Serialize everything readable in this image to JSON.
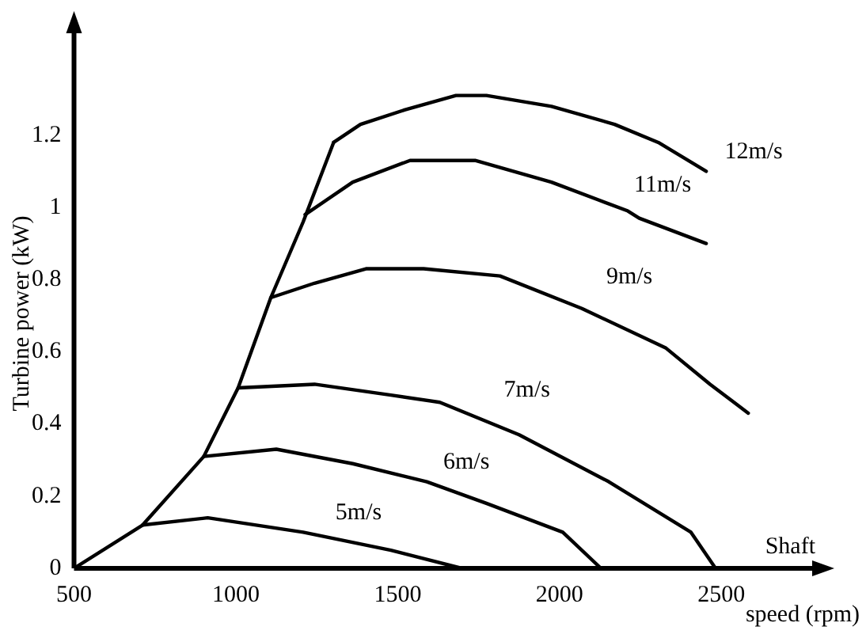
{
  "chart_data": {
    "type": "line",
    "xlabel": "Shaft speed (rpm)",
    "ylabel": "Turbine power (kW)",
    "xlim": [
      500,
      2800
    ],
    "ylim": [
      0,
      1.5
    ],
    "xticks": [
      500,
      1000,
      1500,
      2000,
      2500
    ],
    "yticks": [
      0,
      0.2,
      0.4,
      0.6,
      0.8,
      1,
      1.2
    ],
    "grid": false,
    "legend": false,
    "marker": "none",
    "line_style": "solid",
    "series": [
      {
        "color": "#000000",
        "x": [
          500,
          712,
          901,
          1007,
          1108,
          1208,
          1302
        ],
        "values": [
          0,
          0.12,
          0.31,
          0.5,
          0.75,
          0.96,
          1.18
        ]
      },
      {
        "name": "12m/s",
        "color": "#000000",
        "x": [
          1302,
          1385,
          1521,
          1680,
          1774,
          1975,
          2170,
          2305,
          2453
        ],
        "values": [
          1.18,
          1.23,
          1.27,
          1.31,
          1.31,
          1.28,
          1.23,
          1.18,
          1.1
        ]
      },
      {
        "name": "11m/s",
        "color": "#000000",
        "x": [
          1214,
          1361,
          1538,
          1739,
          1975,
          2211,
          2246,
          2453
        ],
        "values": [
          0.98,
          1.07,
          1.13,
          1.13,
          1.07,
          0.99,
          0.97,
          0.9
        ]
      },
      {
        "name": "9m/s",
        "color": "#000000",
        "x": [
          1108,
          1243,
          1402,
          1580,
          1816,
          2069,
          2329,
          2465,
          2583
        ],
        "values": [
          0.75,
          0.79,
          0.83,
          0.83,
          0.81,
          0.72,
          0.61,
          0.51,
          0.43
        ]
      },
      {
        "name": "7m/s",
        "color": "#000000",
        "x": [
          1007,
          1243,
          1479,
          1630,
          1875,
          2152,
          2406,
          2482
        ],
        "values": [
          0.5,
          0.51,
          0.48,
          0.46,
          0.37,
          0.24,
          0.1,
          0
        ]
      },
      {
        "name": "6m/s",
        "color": "#000000",
        "x": [
          901,
          1125,
          1361,
          1590,
          1774,
          2010,
          2128
        ],
        "values": [
          0.31,
          0.33,
          0.29,
          0.24,
          0.18,
          0.1,
          0
        ]
      },
      {
        "name": "5m/s",
        "color": "#000000",
        "x": [
          712,
          913,
          1208,
          1479,
          1698
        ],
        "values": [
          0.12,
          0.14,
          0.1,
          0.05,
          0
        ]
      }
    ]
  }
}
